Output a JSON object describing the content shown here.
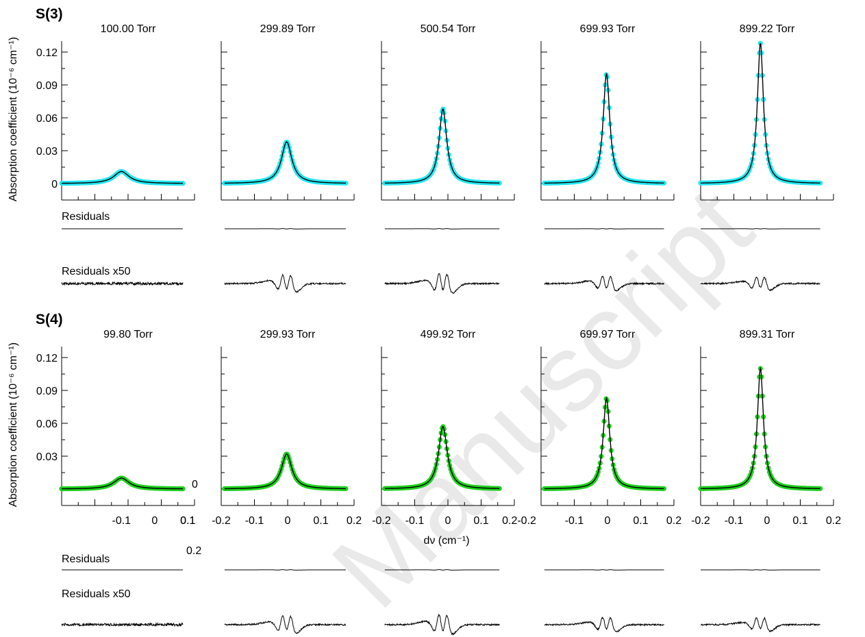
{
  "watermark": "Manuscript",
  "x_axis_label": "dν (cm⁻¹)",
  "y_axis_label": "Absorption coefficient (10⁻⁶ cm⁻¹)",
  "residuals_label": "Residuals",
  "residuals_x50_label": "Residuals x50",
  "y_ticks": [
    "0",
    "0.03",
    "0.06",
    "0.09",
    "0.12"
  ],
  "x_ticks": [
    "-0.2",
    "-0.1",
    "0",
    "0.1",
    "0.2"
  ],
  "x_tick_joined": "0.2-0.2",
  "stray_labels": {
    "zero": "0",
    "point_two": "0.2"
  },
  "colors": {
    "S3_points": "#22e6f0",
    "S4_points": "#1fd01f",
    "fit": "#000000"
  },
  "chart_data": [
    {
      "type": "scatter",
      "title": "S(3)",
      "xlabel": "dν (cm⁻¹)",
      "ylabel": "Absorption coefficient (10⁻⁶ cm⁻¹)",
      "xlim": [
        -0.2,
        0.2
      ],
      "ylim": [
        -0.015,
        0.13
      ],
      "grid": false,
      "series": [
        {
          "name": "100.00 Torr",
          "center": -0.1,
          "peak": 0.011,
          "hwhm": 0.028,
          "xrange": [
            -0.28,
            0.085
          ]
        },
        {
          "name": "299.89 Torr",
          "center": -0.003,
          "peak": 0.038,
          "hwhm": 0.019,
          "xrange": [
            -0.19,
            0.175
          ]
        },
        {
          "name": "500.54 Torr",
          "center": -0.015,
          "peak": 0.068,
          "hwhm": 0.014,
          "xrange": [
            -0.19,
            0.155
          ]
        },
        {
          "name": "699.93 Torr",
          "center": -0.003,
          "peak": 0.1,
          "hwhm": 0.012,
          "xrange": [
            -0.19,
            0.17
          ]
        },
        {
          "name": "899.22 Torr",
          "center": -0.02,
          "peak": 0.128,
          "hwhm": 0.011,
          "xrange": [
            -0.2,
            0.16
          ]
        }
      ]
    },
    {
      "type": "scatter",
      "title": "S(4)",
      "xlabel": "dν (cm⁻¹)",
      "ylabel": "Absorption coefficient (10⁻⁶ cm⁻¹)",
      "xlim": [
        -0.2,
        0.2
      ],
      "ylim": [
        -0.015,
        0.13
      ],
      "grid": false,
      "series": [
        {
          "name": "99.80 Torr",
          "center": -0.1,
          "peak": 0.01,
          "hwhm": 0.028,
          "xrange": [
            -0.28,
            0.085
          ]
        },
        {
          "name": "299.93 Torr",
          "center": -0.003,
          "peak": 0.032,
          "hwhm": 0.019,
          "xrange": [
            -0.19,
            0.175
          ]
        },
        {
          "name": "499.92 Torr",
          "center": -0.015,
          "peak": 0.057,
          "hwhm": 0.016,
          "xrange": [
            -0.19,
            0.155
          ]
        },
        {
          "name": "699.97 Torr",
          "center": -0.003,
          "peak": 0.083,
          "hwhm": 0.012,
          "xrange": [
            -0.19,
            0.17
          ]
        },
        {
          "name": "899.31 Torr",
          "center": -0.02,
          "peak": 0.11,
          "hwhm": 0.011,
          "xrange": [
            -0.2,
            0.16
          ]
        }
      ]
    }
  ]
}
